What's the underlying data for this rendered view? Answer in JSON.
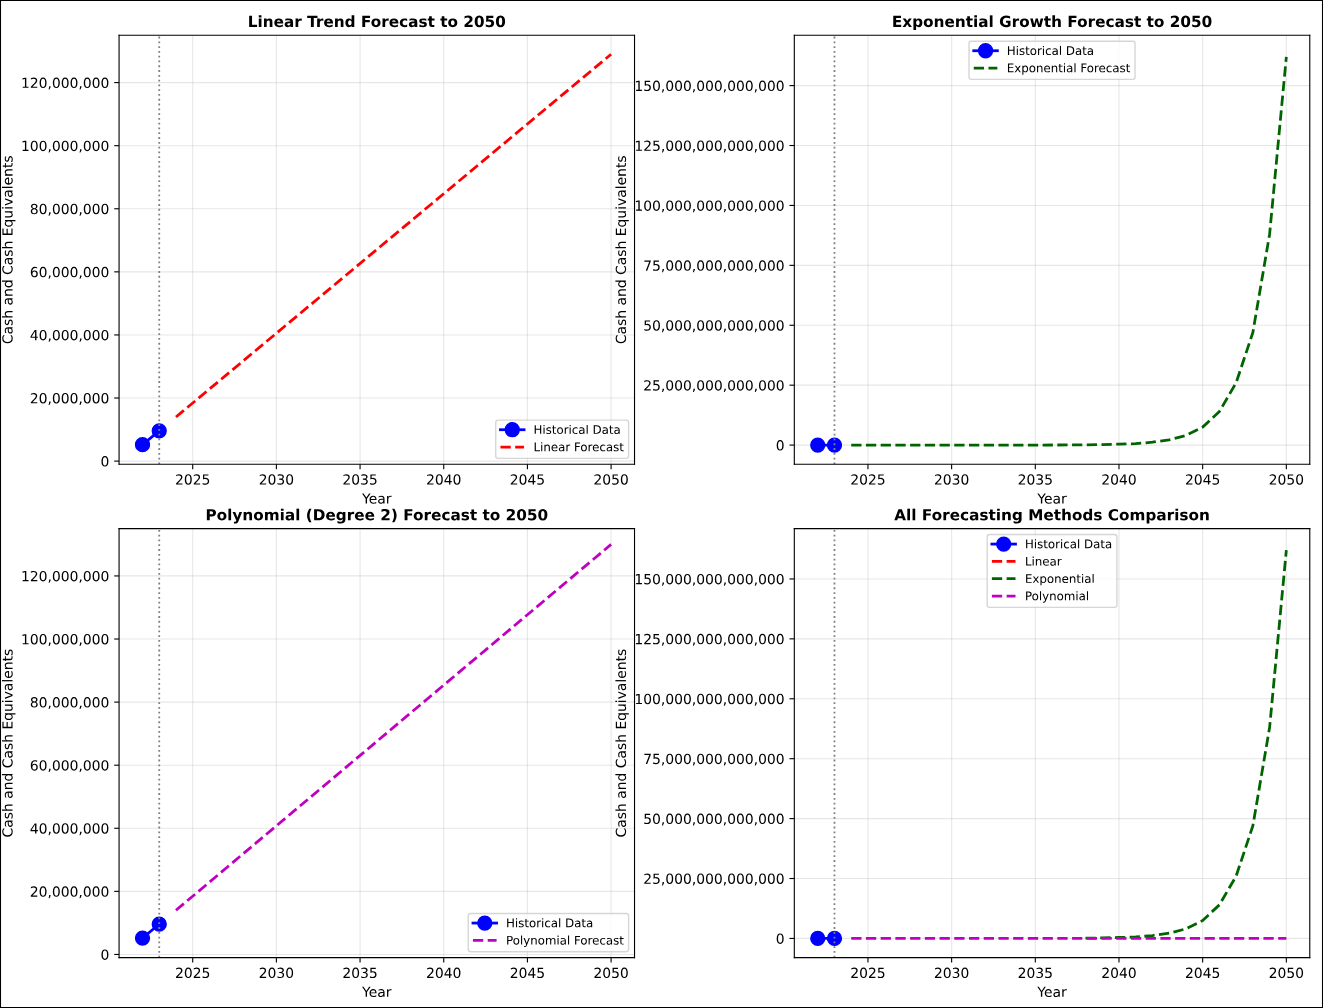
{
  "chart_data": [
    {
      "type": "line",
      "title": "Linear Trend Forecast to 2050",
      "xlabel": "Year",
      "ylabel": "Cash and Cash Equivalents",
      "xlim": [
        2020.6,
        2051.4
      ],
      "ylim": [
        -1000000,
        135000000
      ],
      "xticks": [
        2025,
        2030,
        2035,
        2040,
        2045,
        2050
      ],
      "yticks": [
        {
          "value": 0,
          "label": "0"
        },
        {
          "value": 20000000,
          "label": "20,000,000"
        },
        {
          "value": 40000000,
          "label": "40,000,000"
        },
        {
          "value": 60000000,
          "label": "60,000,000"
        },
        {
          "value": 80000000,
          "label": "80,000,000"
        },
        {
          "value": 100000000,
          "label": "100,000,000"
        },
        {
          "value": 120000000,
          "label": "120,000,000"
        }
      ],
      "grid": true,
      "legend": "bottom right",
      "ref_lines": [
        {
          "axis": "x",
          "value": 2023,
          "color": "#808080",
          "line_style": "dotted"
        }
      ],
      "series": [
        {
          "name": "Historical Data",
          "color": "#0000ff",
          "x": [
            2022,
            2023
          ],
          "values": [
            5200000,
            9600000
          ],
          "marker": "circle",
          "line_style": "solid"
        },
        {
          "name": "Linear Forecast",
          "color": "#ff0000",
          "x": [
            2024,
            2050
          ],
          "values": [
            14000000,
            129000000
          ],
          "marker": "none",
          "line_style": "dashed"
        }
      ]
    },
    {
      "type": "line",
      "title": "Exponential Growth Forecast to 2050",
      "xlabel": "Year",
      "ylabel": "Cash and Cash Equivalents",
      "xlim": [
        2020.6,
        2051.4
      ],
      "ylim": [
        -8000000000000,
        171000000000000
      ],
      "xticks": [
        2025,
        2030,
        2035,
        2040,
        2045,
        2050
      ],
      "yticks": [
        {
          "value": 0,
          "label": "0"
        },
        {
          "value": 25000000000000,
          "label": "25,000,000,000,000"
        },
        {
          "value": 50000000000000,
          "label": "50,000,000,000,000"
        },
        {
          "value": 75000000000000,
          "label": "75,000,000,000,000"
        },
        {
          "value": 100000000000000,
          "label": "100,000,000,000,000"
        },
        {
          "value": 125000000000000,
          "label": "125,000,000,000,000"
        },
        {
          "value": 150000000000000,
          "label": "150,000,000,000,000"
        }
      ],
      "grid": true,
      "legend": "top",
      "ref_lines": [
        {
          "axis": "x",
          "value": 2023,
          "color": "#808080",
          "line_style": "dotted"
        }
      ],
      "series": [
        {
          "name": "Historical Data",
          "color": "#0000ff",
          "x": [
            2022,
            2023
          ],
          "values": [
            0,
            0
          ],
          "marker": "circle",
          "line_style": "solid"
        },
        {
          "name": "Exponential Forecast",
          "color": "#006400",
          "x": [
            2024,
            2030,
            2035,
            2038,
            2039,
            2040,
            2041,
            2042,
            2043,
            2044,
            2045,
            2046,
            2047,
            2048,
            2049,
            2050
          ],
          "values": [
            0,
            0,
            0,
            100000000000,
            200000000000,
            400000000000,
            600000000000,
            1200000000000,
            2200000000000,
            4000000000000,
            7500000000000,
            14000000000000,
            26000000000000,
            47000000000000,
            88000000000000,
            162000000000000
          ],
          "marker": "none",
          "line_style": "dashed"
        }
      ]
    },
    {
      "type": "line",
      "title": "Polynomial (Degree 2) Forecast to 2050",
      "xlabel": "Year",
      "ylabel": "Cash and Cash Equivalents",
      "xlim": [
        2020.6,
        2051.4
      ],
      "ylim": [
        -1000000,
        135000000
      ],
      "xticks": [
        2025,
        2030,
        2035,
        2040,
        2045,
        2050
      ],
      "yticks": [
        {
          "value": 0,
          "label": "0"
        },
        {
          "value": 20000000,
          "label": "20,000,000"
        },
        {
          "value": 40000000,
          "label": "40,000,000"
        },
        {
          "value": 60000000,
          "label": "60,000,000"
        },
        {
          "value": 80000000,
          "label": "80,000,000"
        },
        {
          "value": 100000000,
          "label": "100,000,000"
        },
        {
          "value": 120000000,
          "label": "120,000,000"
        }
      ],
      "grid": true,
      "legend": "bottom right",
      "ref_lines": [
        {
          "axis": "x",
          "value": 2023,
          "color": "#808080",
          "line_style": "dotted"
        }
      ],
      "series": [
        {
          "name": "Historical Data",
          "color": "#0000ff",
          "x": [
            2022,
            2023
          ],
          "values": [
            5200000,
            9600000
          ],
          "marker": "circle",
          "line_style": "solid"
        },
        {
          "name": "Polynomial Forecast",
          "color": "#bf00bf",
          "x": [
            2024,
            2050
          ],
          "values": [
            14000000,
            130000000
          ],
          "marker": "none",
          "line_style": "dashed"
        }
      ]
    },
    {
      "type": "line",
      "title": "All Forecasting Methods Comparison",
      "xlabel": "Year",
      "ylabel": "Cash and Cash Equivalents",
      "xlim": [
        2020.6,
        2051.4
      ],
      "ylim": [
        -8000000000000,
        171000000000000
      ],
      "xticks": [
        2025,
        2030,
        2035,
        2040,
        2045,
        2050
      ],
      "yticks": [
        {
          "value": 0,
          "label": "0"
        },
        {
          "value": 25000000000000,
          "label": "25,000,000,000,000"
        },
        {
          "value": 50000000000000,
          "label": "50,000,000,000,000"
        },
        {
          "value": 75000000000000,
          "label": "75,000,000,000,000"
        },
        {
          "value": 100000000000000,
          "label": "100,000,000,000,000"
        },
        {
          "value": 125000000000000,
          "label": "125,000,000,000,000"
        },
        {
          "value": 150000000000000,
          "label": "150,000,000,000,000"
        }
      ],
      "grid": true,
      "legend": "top",
      "ref_lines": [
        {
          "axis": "x",
          "value": 2023,
          "color": "#808080",
          "line_style": "dotted"
        }
      ],
      "series": [
        {
          "name": "Historical Data",
          "color": "#0000ff",
          "x": [
            2022,
            2023
          ],
          "values": [
            0,
            0
          ],
          "marker": "circle",
          "line_style": "solid"
        },
        {
          "name": "Linear",
          "color": "#ff0000",
          "marker": "none",
          "line_style": "dashed"
        },
        {
          "name": "Exponential",
          "color": "#006400",
          "x": [
            2038,
            2039,
            2040,
            2041,
            2042,
            2043,
            2044,
            2045,
            2046,
            2047,
            2048,
            2049,
            2050
          ],
          "values": [
            100000000000,
            200000000000,
            400000000000,
            600000000000,
            1200000000000,
            2200000000000,
            4000000000000,
            7500000000000,
            14000000000000,
            26000000000000,
            47000000000000,
            88000000000000,
            162000000000000
          ],
          "marker": "none",
          "line_style": "dashed"
        },
        {
          "name": "Polynomial",
          "color": "#bf00bf",
          "x": [
            2024,
            2050
          ],
          "values": [
            0,
            0
          ],
          "marker": "none",
          "line_style": "dashed"
        }
      ]
    }
  ]
}
